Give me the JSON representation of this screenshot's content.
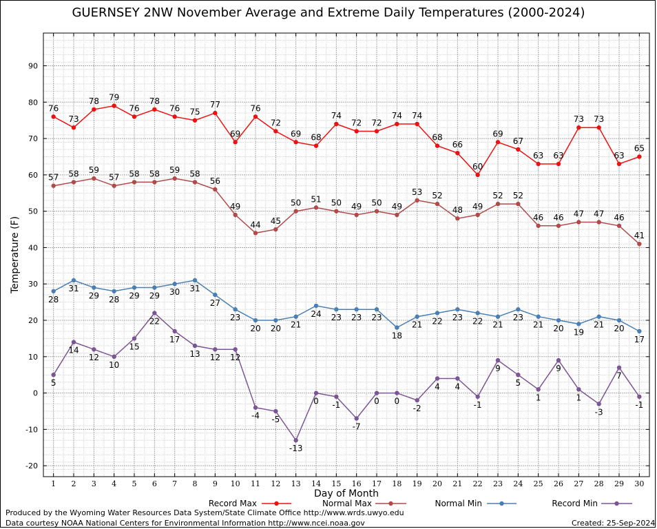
{
  "chart_data": {
    "type": "line",
    "title": "GUERNSEY 2NW November Average and Extreme Daily Temperatures (2000-2024)",
    "xlabel": "Day of Month",
    "ylabel": "Temperature (F)",
    "x": [
      1,
      2,
      3,
      4,
      5,
      6,
      7,
      8,
      9,
      10,
      11,
      12,
      13,
      14,
      15,
      16,
      17,
      18,
      19,
      20,
      21,
      22,
      23,
      24,
      25,
      26,
      27,
      28,
      29,
      30
    ],
    "xlim": [
      0.5,
      30.5
    ],
    "ylim": [
      -23,
      99
    ],
    "yticks": [
      -20,
      -10,
      0,
      10,
      20,
      30,
      40,
      50,
      60,
      70,
      80,
      90
    ],
    "grid": true,
    "legend_position": "bottom",
    "series": [
      {
        "name": "Record Max",
        "color": "#ee1111",
        "label_position": "above",
        "values": [
          76,
          73,
          78,
          79,
          76,
          78,
          76,
          75,
          77,
          69,
          76,
          72,
          69,
          68,
          74,
          72,
          72,
          74,
          74,
          68,
          66,
          60,
          69,
          67,
          63,
          63,
          73,
          73,
          63,
          65
        ]
      },
      {
        "name": "Normal Max",
        "color": "#b24a4a",
        "label_position": "above",
        "values": [
          57,
          58,
          59,
          57,
          58,
          58,
          59,
          58,
          56,
          49,
          44,
          45,
          50,
          51,
          50,
          49,
          50,
          49,
          53,
          52,
          48,
          49,
          52,
          52,
          46,
          46,
          47,
          47,
          46,
          41
        ]
      },
      {
        "name": "Normal Min",
        "color": "#4a7fb5",
        "label_position": "below",
        "values": [
          28,
          31,
          29,
          28,
          29,
          29,
          30,
          31,
          27,
          23,
          20,
          20,
          21,
          24,
          23,
          23,
          23,
          18,
          21,
          22,
          23,
          22,
          21,
          23,
          21,
          20,
          19,
          21,
          20,
          17
        ]
      },
      {
        "name": "Record Min",
        "color": "#7b5595",
        "label_position": "below",
        "values": [
          5,
          14,
          12,
          10,
          15,
          22,
          17,
          13,
          12,
          12,
          -4,
          -5,
          -13,
          0,
          -1,
          -7,
          0,
          0,
          -2,
          4,
          4,
          -1,
          9,
          5,
          1,
          9,
          1,
          -3,
          7,
          -1
        ]
      }
    ]
  },
  "footer": {
    "produced_by": "Produced by the Wyoming Water Resources Data System/State Climate Office http://www.wrds.uwyo.edu",
    "courtesy": "Data courtesy NOAA National Centers for Environmental Information http://www.ncei.noaa.gov",
    "created": "Created: 25-Sep-2024"
  }
}
